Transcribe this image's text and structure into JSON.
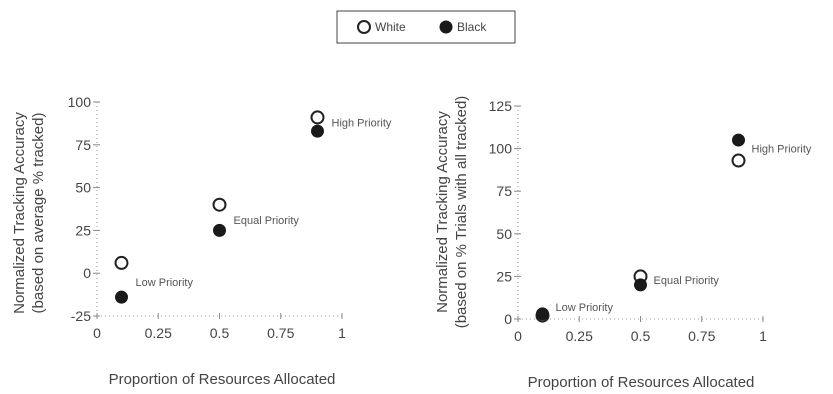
{
  "legend": {
    "items": [
      {
        "label": "White",
        "fill": "#ffffff"
      },
      {
        "label": "Black",
        "fill": "#1a1a1a"
      }
    ]
  },
  "chart_data": [
    {
      "type": "scatter",
      "xlabel": "Proportion of Resources Allocated",
      "ylabel": [
        "Normalized Tracking Accuracy",
        "(based on average % tracked)"
      ],
      "xlim": [
        0,
        1
      ],
      "ylim": [
        -25,
        100
      ],
      "xticks": [
        "0",
        "0.25",
        "0.5",
        "0.75",
        "1"
      ],
      "xtick_values": [
        0,
        0.25,
        0.5,
        0.75,
        1
      ],
      "yticks": [
        "100",
        "75",
        "50",
        "25",
        "0",
        "-25"
      ],
      "ytick_values": [
        100,
        75,
        50,
        25,
        0,
        -25
      ],
      "series": [
        {
          "name": "White",
          "x": [
            0.1,
            0.5,
            0.9
          ],
          "y": [
            6,
            40,
            91
          ]
        },
        {
          "name": "Black",
          "x": [
            0.1,
            0.5,
            0.9
          ],
          "y": [
            -14,
            25,
            83
          ]
        }
      ],
      "annotations": [
        {
          "text": "Low Priority",
          "x": 0.1,
          "y": -5
        },
        {
          "text": "Equal Priority",
          "x": 0.5,
          "y": 31
        },
        {
          "text": "High Priority",
          "x": 0.9,
          "y": 88
        }
      ]
    },
    {
      "type": "scatter",
      "xlabel": "Proportion of Resources Allocated",
      "ylabel": [
        "Normalized Tracking Accuracy",
        "(based on % Trials with all tracked)"
      ],
      "xlim": [
        0,
        1
      ],
      "ylim": [
        0,
        125
      ],
      "xticks": [
        "0",
        "0.25",
        "0.5",
        "0.75",
        "1"
      ],
      "xtick_values": [
        0,
        0.25,
        0.5,
        0.75,
        1
      ],
      "yticks": [
        "125",
        "100",
        "75",
        "50",
        "25",
        "0"
      ],
      "ytick_values": [
        125,
        100,
        75,
        50,
        25,
        0
      ],
      "series": [
        {
          "name": "White",
          "x": [
            0.1,
            0.5,
            0.9
          ],
          "y": [
            2,
            25,
            93
          ]
        },
        {
          "name": "Black",
          "x": [
            0.1,
            0.5,
            0.9
          ],
          "y": [
            3,
            20,
            105
          ]
        }
      ],
      "annotations": [
        {
          "text": "Low Priority",
          "x": 0.1,
          "y": 7
        },
        {
          "text": "Equal Priority",
          "x": 0.5,
          "y": 23
        },
        {
          "text": "High Priority",
          "x": 0.9,
          "y": 100
        }
      ]
    }
  ]
}
